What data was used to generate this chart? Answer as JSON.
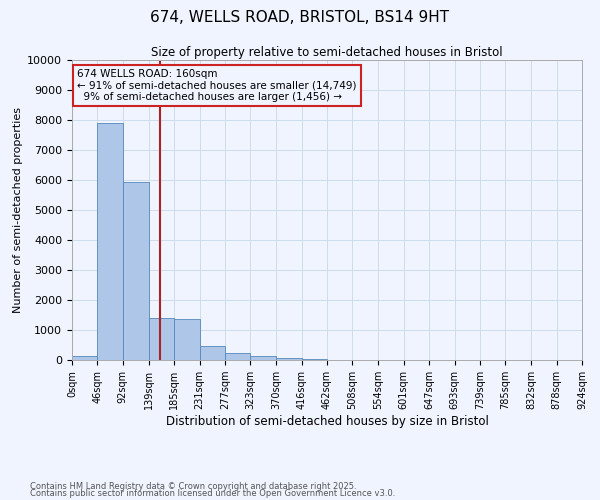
{
  "title": "674, WELLS ROAD, BRISTOL, BS14 9HT",
  "subtitle": "Size of property relative to semi-detached houses in Bristol",
  "xlabel": "Distribution of semi-detached houses by size in Bristol",
  "ylabel": "Number of semi-detached properties",
  "property_label": "674 WELLS ROAD: 160sqm",
  "pct_smaller": "91% of semi-detached houses are smaller (14,749)",
  "pct_larger": "9% of semi-detached houses are larger (1,456)",
  "property_size": 160,
  "bin_edges": [
    0,
    46,
    92,
    139,
    185,
    231,
    277,
    323,
    370,
    416,
    462,
    508,
    554,
    601,
    647,
    693,
    739,
    785,
    832,
    878,
    924
  ],
  "bin_labels": [
    "0sqm",
    "46sqm",
    "92sqm",
    "139sqm",
    "185sqm",
    "231sqm",
    "277sqm",
    "323sqm",
    "370sqm",
    "416sqm",
    "462sqm",
    "508sqm",
    "554sqm",
    "601sqm",
    "647sqm",
    "693sqm",
    "739sqm",
    "785sqm",
    "832sqm",
    "878sqm",
    "924sqm"
  ],
  "bar_heights": [
    130,
    7900,
    5950,
    1400,
    1380,
    480,
    230,
    140,
    80,
    40,
    0,
    0,
    0,
    0,
    0,
    0,
    0,
    0,
    0,
    0
  ],
  "bar_color": "#aec6e8",
  "bar_edge_color": "#5588bb",
  "vline_color": "#aa2222",
  "vline_x": 160,
  "ylim": [
    0,
    10000
  ],
  "yticks": [
    0,
    1000,
    2000,
    3000,
    4000,
    5000,
    6000,
    7000,
    8000,
    9000,
    10000
  ],
  "grid_color": "#ccddee",
  "annotation_box_color": "#cc2222",
  "footer1": "Contains HM Land Registry data © Crown copyright and database right 2025.",
  "footer2": "Contains public sector information licensed under the Open Government Licence v3.0.",
  "background_color": "#f0f4ff"
}
